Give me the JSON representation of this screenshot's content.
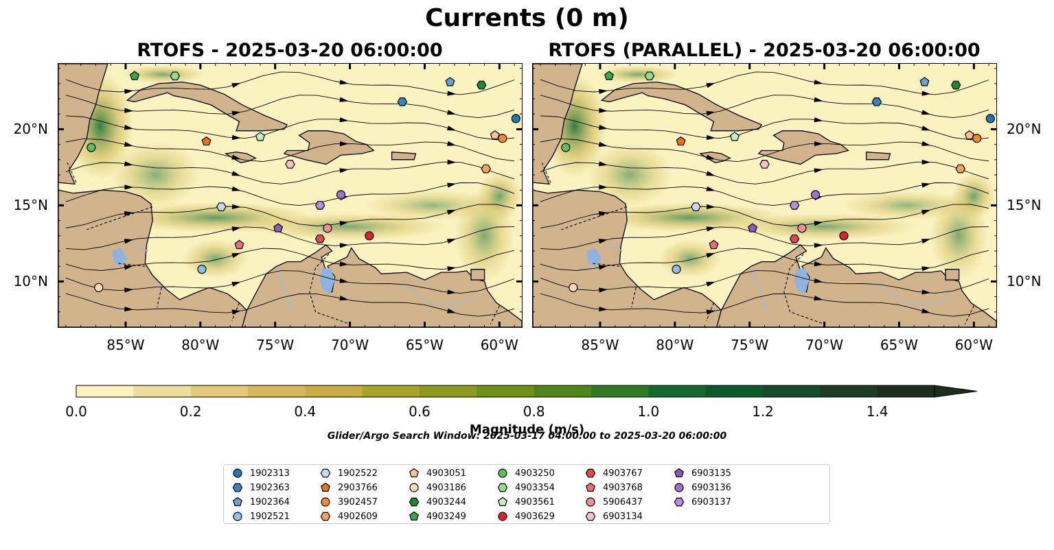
{
  "suptitle": "Currents (0 m)",
  "panels": [
    {
      "title": "RTOFS - 2025-03-20 06:00:00"
    },
    {
      "title": "RTOFS (PARALLEL) - 2025-03-20 06:00:00"
    }
  ],
  "axes": {
    "lon_ticks": [
      "85°W",
      "80°W",
      "75°W",
      "70°W",
      "65°W",
      "60°W"
    ],
    "lat_ticks": [
      "20°N",
      "15°N",
      "10°N"
    ]
  },
  "colorbar": {
    "label": "Magnitude (m/s)",
    "ticks": [
      "0.0",
      "0.2",
      "0.4",
      "0.6",
      "0.8",
      "1.0",
      "1.2",
      "1.4"
    ],
    "range": [
      0,
      1.5
    ],
    "extend": "max",
    "colors": [
      "#faf3c0",
      "#eedd9a",
      "#e2c877",
      "#d6b759",
      "#c7ad44",
      "#a8a52b",
      "#8c9b1d",
      "#6f9016",
      "#4f8519",
      "#2e7a20",
      "#136a2c",
      "#0c5a2c",
      "#154a2a",
      "#1e3b24",
      "#1d2c1c"
    ]
  },
  "colors": {
    "land": "#d2b48c",
    "lake": "#8fb3df",
    "river": "#a7b8cf",
    "water_low": "#faf3c0",
    "water_mid": "#c7ad44",
    "water_high": "#136a2c"
  },
  "search_window": "Glider/Argo Search Window: 2025-03-17 04:00:00 to 2025-03-20 06:00:00",
  "legend": [
    {
      "id": "1902313",
      "marker": "circle",
      "color": "#1f77b4"
    },
    {
      "id": "1902363",
      "marker": "hexagon",
      "color": "#3a83c0"
    },
    {
      "id": "1902364",
      "marker": "pentagon",
      "color": "#6aa2d3"
    },
    {
      "id": "1902521",
      "marker": "circle",
      "color": "#8fc0e8"
    },
    {
      "id": "1902522",
      "marker": "hexagon",
      "color": "#c6dbef"
    },
    {
      "id": "2903766",
      "marker": "pentagon",
      "color": "#e8720c"
    },
    {
      "id": "3902457",
      "marker": "circle",
      "color": "#f58a2a"
    },
    {
      "id": "4902609",
      "marker": "hexagon",
      "color": "#f9a35a"
    },
    {
      "id": "4903051",
      "marker": "pentagon",
      "color": "#fcc38c"
    },
    {
      "id": "4903186",
      "marker": "circle",
      "color": "#fdd9b5"
    },
    {
      "id": "4903244",
      "marker": "hexagon",
      "color": "#1a8a2a"
    },
    {
      "id": "4903249",
      "marker": "pentagon",
      "color": "#39a846"
    },
    {
      "id": "4903250",
      "marker": "circle",
      "color": "#5cbf5a"
    },
    {
      "id": "4903354",
      "marker": "hexagon",
      "color": "#94db86"
    },
    {
      "id": "4903561",
      "marker": "pentagon",
      "color": "#c4f0bb"
    },
    {
      "id": "4903629",
      "marker": "circle",
      "color": "#d62728"
    },
    {
      "id": "4903767",
      "marker": "hexagon",
      "color": "#df4a4c"
    },
    {
      "id": "4903768",
      "marker": "pentagon",
      "color": "#ea6e74"
    },
    {
      "id": "5906437",
      "marker": "circle",
      "color": "#f19197"
    },
    {
      "id": "6903134",
      "marker": "hexagon",
      "color": "#fbc4c4"
    },
    {
      "id": "6903135",
      "marker": "pentagon",
      "color": "#8a5cb8"
    },
    {
      "id": "6903136",
      "marker": "circle",
      "color": "#9c72cf"
    },
    {
      "id": "6903137",
      "marker": "hexagon",
      "color": "#b58ee0"
    }
  ],
  "map_extent": {
    "lon": [
      -89.5,
      -58.5
    ],
    "lat": [
      7,
      24.3
    ]
  },
  "float_positions": [
    {
      "id": "1902313",
      "lon": -58.9,
      "lat": 20.7
    },
    {
      "id": "1902363",
      "lon": -66.5,
      "lat": 21.8
    },
    {
      "id": "1902364",
      "lon": -63.3,
      "lat": 23.1
    },
    {
      "id": "1902521",
      "lon": -79.9,
      "lat": 10.8
    },
    {
      "id": "1902522",
      "lon": -78.6,
      "lat": 14.9
    },
    {
      "id": "2903766",
      "lon": -79.6,
      "lat": 19.2
    },
    {
      "id": "3902457",
      "lon": -59.8,
      "lat": 19.4
    },
    {
      "id": "4902609",
      "lon": -60.9,
      "lat": 17.4
    },
    {
      "id": "4903051",
      "lon": -60.3,
      "lat": 19.6
    },
    {
      "id": "4903186",
      "lon": -86.8,
      "lat": 9.6
    },
    {
      "id": "4903244",
      "lon": -61.2,
      "lat": 22.9
    },
    {
      "id": "4903249",
      "lon": -84.4,
      "lat": 23.5
    },
    {
      "id": "4903250",
      "lon": -87.3,
      "lat": 18.8
    },
    {
      "id": "4903354",
      "lon": -81.7,
      "lat": 23.5
    },
    {
      "id": "4903561",
      "lon": -76.0,
      "lat": 19.5
    },
    {
      "id": "4903629",
      "lon": -68.7,
      "lat": 13.0
    },
    {
      "id": "4903767",
      "lon": -72.0,
      "lat": 12.8
    },
    {
      "id": "4903768",
      "lon": -77.4,
      "lat": 12.4
    },
    {
      "id": "5906437",
      "lon": -71.5,
      "lat": 13.5
    },
    {
      "id": "6903134",
      "lon": -74.0,
      "lat": 17.7
    },
    {
      "id": "6903135",
      "lon": -74.8,
      "lat": 13.5
    },
    {
      "id": "6903136",
      "lon": -70.6,
      "lat": 15.7
    },
    {
      "id": "6903137",
      "lon": -72.0,
      "lat": 15.0
    }
  ]
}
